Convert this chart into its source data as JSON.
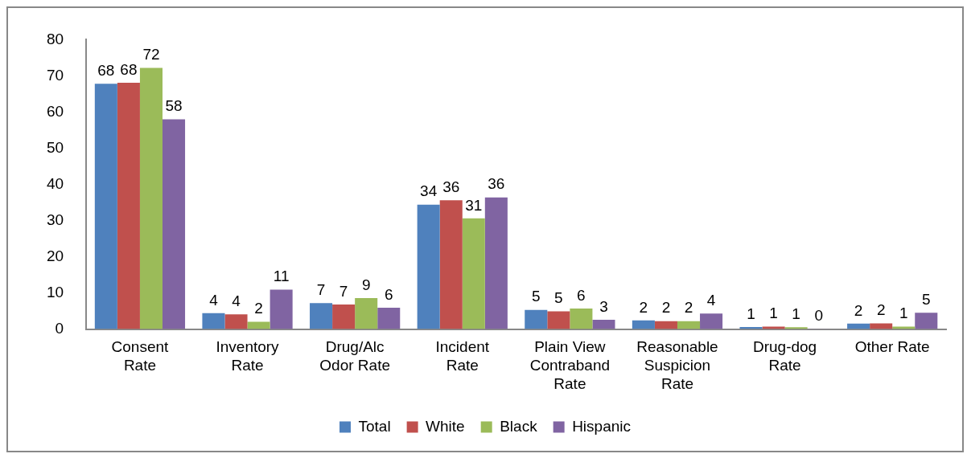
{
  "chart_data": {
    "type": "bar",
    "categories": [
      "Consent Rate",
      "Inventory Rate",
      "Drug/Alc Odor Rate",
      "Incident Rate",
      "Plain View Contraband Rate",
      "Reasonable Suspicion Rate",
      "Drug-dog Rate",
      "Other Rate"
    ],
    "series": [
      {
        "name": "Total",
        "color": "#4f81bd",
        "values": [
          67.8,
          4.4,
          7.2,
          34.4,
          5.3,
          2.4,
          0.6,
          1.5
        ],
        "value_labels": [
          "68",
          "4",
          "7",
          "34",
          "5",
          "2",
          "1",
          "2"
        ]
      },
      {
        "name": "White",
        "color": "#c0504d",
        "values": [
          68.1,
          4.1,
          6.8,
          35.6,
          4.9,
          2.2,
          0.7,
          1.6
        ],
        "value_labels": [
          "68",
          "4",
          "7",
          "36",
          "5",
          "2",
          "1",
          "2"
        ]
      },
      {
        "name": "Black",
        "color": "#9bbb59",
        "values": [
          72.2,
          2.0,
          8.6,
          30.6,
          5.7,
          2.2,
          0.5,
          0.7
        ],
        "value_labels": [
          "72",
          "2",
          "9",
          "31",
          "6",
          "2",
          "1",
          "1"
        ]
      },
      {
        "name": "Hispanic",
        "color": "#8064a2",
        "values": [
          58.0,
          10.9,
          5.9,
          36.4,
          2.6,
          4.3,
          0.1,
          4.5
        ],
        "value_labels": [
          "58",
          "11",
          "6",
          "36",
          "3",
          "4",
          "0",
          "5"
        ]
      }
    ],
    "ylim": [
      0,
      80
    ],
    "yticks": [
      0,
      10,
      20,
      30,
      40,
      50,
      60,
      70,
      80
    ],
    "grid": false,
    "legend": "bottom"
  }
}
